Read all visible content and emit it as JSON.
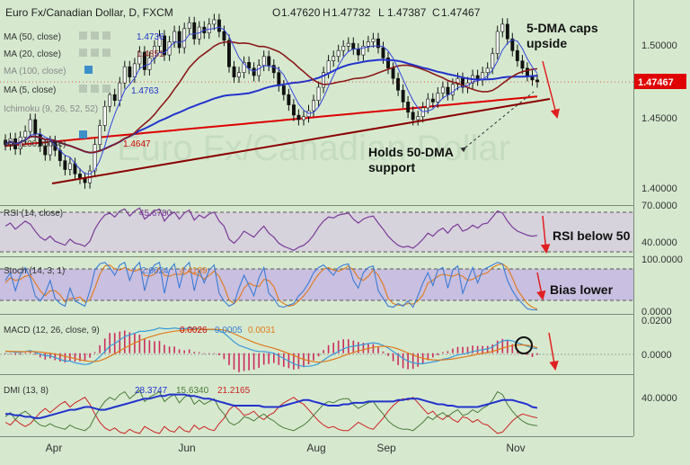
{
  "header": {
    "title": "Euro Fx/Canadian Dollar, D, FXCM",
    "ohlc": {
      "open_label": "O",
      "open": "1.47620",
      "high_label": "H",
      "high": "1.47732",
      "low_label": "L",
      "low": "1.47387",
      "close_label": "C",
      "close": "1.47467"
    }
  },
  "legend": [
    {
      "label": "MA (50, close)",
      "value": "1.4736",
      "color": "#2233cc"
    },
    {
      "label": "MA (20, close)",
      "value": "1.4851",
      "color": "#8b1a1a"
    },
    {
      "label": "MA (100, close)",
      "value": "",
      "color": "#999999"
    },
    {
      "label": "MA (5, close)",
      "value": "1.4763",
      "color": "#2233cc"
    },
    {
      "label": "Ichimoku (9, 26, 52, 52)",
      "value": "",
      "color": "#999999"
    },
    {
      "label": "MA (200, close)",
      "value": "1.4647",
      "color": "#cc0000"
    }
  ],
  "annotations": {
    "dma_caps_line1": "5-DMA caps",
    "dma_caps_line2": "upside",
    "holds_line1": "Holds 50-DMA",
    "holds_line2": "support",
    "rsi_note": "RSI below 50",
    "bias_note": "Bias lower"
  },
  "watermark": "Euro Fx/Canadian Dollar",
  "price_badge": "1.47467",
  "chart_data": [
    {
      "type": "candlestick",
      "panel": "price",
      "x_labels": [
        "Apr",
        "Jun",
        "Aug",
        "Sep",
        "Nov"
      ],
      "y_ticks": [
        "1.50000",
        "1.45000",
        "1.40000"
      ],
      "ylim": [
        1.392,
        1.528
      ],
      "last_close": 1.47467,
      "series": [
        {
          "name": "MA (5, close)",
          "value": 1.4763
        },
        {
          "name": "MA (20, close)",
          "value": 1.4851
        },
        {
          "name": "MA (50, close)",
          "value": 1.4736
        },
        {
          "name": "MA (200, close)",
          "value": 1.4647
        }
      ],
      "closes": [
        1.432,
        1.436,
        1.429,
        1.437,
        1.441,
        1.449,
        1.439,
        1.431,
        1.425,
        1.434,
        1.428,
        1.421,
        1.415,
        1.419,
        1.412,
        1.409,
        1.406,
        1.414,
        1.432,
        1.445,
        1.458,
        1.466,
        1.462,
        1.474,
        1.485,
        1.478,
        1.487,
        1.495,
        1.483,
        1.491,
        1.499,
        1.506,
        1.493,
        1.502,
        1.509,
        1.498,
        1.511,
        1.515,
        1.504,
        1.512,
        1.508,
        1.514,
        1.517,
        1.509,
        1.503,
        1.485,
        1.478,
        1.481,
        1.488,
        1.484,
        1.479,
        1.486,
        1.492,
        1.486,
        1.481,
        1.472,
        1.466,
        1.459,
        1.452,
        1.449,
        1.451,
        1.455,
        1.462,
        1.471,
        1.481,
        1.489,
        1.492,
        1.496,
        1.499,
        1.501,
        1.497,
        1.493,
        1.499,
        1.502,
        1.504,
        1.498,
        1.491,
        1.484,
        1.477,
        1.469,
        1.461,
        1.454,
        1.449,
        1.451,
        1.457,
        1.463,
        1.461,
        1.467,
        1.471,
        1.466,
        1.473,
        1.477,
        1.471,
        1.474,
        1.479,
        1.476,
        1.481,
        1.484,
        1.494,
        1.509,
        1.514,
        1.504,
        1.496,
        1.489,
        1.484,
        1.479,
        1.476,
        1.4747
      ]
    },
    {
      "type": "line",
      "panel": "rsi",
      "name": "RSI (14, close)",
      "value_label": "45.6780",
      "y_ticks": [
        "70.0000",
        "40.0000"
      ],
      "ylim": [
        25,
        75
      ],
      "band": [
        30,
        70
      ],
      "values": [
        55,
        58,
        52,
        56,
        60,
        57,
        50,
        44,
        41,
        45,
        40,
        38,
        36,
        42,
        38,
        37,
        35,
        40,
        52,
        60,
        66,
        68,
        64,
        70,
        72,
        65,
        70,
        73,
        62,
        66,
        70,
        72,
        60,
        66,
        69,
        62,
        68,
        71,
        61,
        66,
        63,
        67,
        69,
        60,
        55,
        42,
        38,
        43,
        50,
        47,
        44,
        50,
        55,
        48,
        44,
        38,
        35,
        33,
        31,
        34,
        36,
        40,
        46,
        54,
        60,
        64,
        63,
        66,
        67,
        68,
        62,
        58,
        62,
        64,
        65,
        58,
        52,
        45,
        40,
        36,
        34,
        35,
        33,
        37,
        42,
        48,
        45,
        50,
        53,
        48,
        54,
        57,
        50,
        52,
        56,
        53,
        57,
        58,
        64,
        70,
        68,
        60,
        54,
        50,
        48,
        46,
        45,
        45.678
      ]
    },
    {
      "type": "line",
      "panel": "stochastic",
      "name": "Stoch (14, 3, 1)",
      "values_label": [
        "2.6624",
        "4.4189"
      ],
      "y_ticks": [
        "100.0000",
        "0.0000"
      ],
      "ylim": [
        -5,
        105
      ],
      "band": [
        20,
        80
      ],
      "k": [
        60,
        75,
        40,
        70,
        85,
        65,
        30,
        20,
        35,
        60,
        25,
        15,
        10,
        45,
        20,
        15,
        10,
        40,
        80,
        92,
        95,
        85,
        70,
        90,
        95,
        60,
        85,
        95,
        40,
        75,
        90,
        95,
        35,
        80,
        92,
        45,
        85,
        95,
        40,
        80,
        55,
        80,
        90,
        35,
        20,
        10,
        15,
        45,
        70,
        50,
        30,
        65,
        85,
        35,
        25,
        10,
        8,
        12,
        15,
        30,
        40,
        55,
        75,
        85,
        90,
        80,
        70,
        85,
        90,
        92,
        60,
        45,
        75,
        85,
        88,
        40,
        25,
        10,
        8,
        15,
        10,
        20,
        8,
        30,
        55,
        75,
        50,
        80,
        85,
        45,
        80,
        88,
        35,
        60,
        85,
        55,
        80,
        85,
        90,
        95,
        92,
        60,
        40,
        25,
        15,
        5,
        3,
        2.6624
      ],
      "d": [
        55,
        65,
        60,
        62,
        68,
        70,
        55,
        40,
        30,
        40,
        40,
        32,
        18,
        25,
        25,
        28,
        18,
        22,
        45,
        72,
        88,
        90,
        82,
        80,
        85,
        80,
        78,
        82,
        70,
        68,
        72,
        85,
        70,
        68,
        72,
        72,
        72,
        78,
        72,
        70,
        62,
        70,
        78,
        68,
        48,
        22,
        15,
        25,
        45,
        55,
        50,
        48,
        62,
        60,
        48,
        22,
        15,
        10,
        12,
        20,
        30,
        42,
        58,
        72,
        82,
        85,
        80,
        78,
        82,
        88,
        80,
        65,
        60,
        68,
        80,
        70,
        52,
        25,
        15,
        12,
        12,
        15,
        14,
        20,
        32,
        55,
        60,
        68,
        72,
        70,
        68,
        72,
        68,
        60,
        62,
        68,
        72,
        75,
        85,
        90,
        92,
        85,
        65,
        42,
        28,
        15,
        8,
        4.4189
      ]
    },
    {
      "type": "bar+line",
      "panel": "macd",
      "name": "MACD (12, 26, close, 9)",
      "values_label": [
        "0.0026",
        "0.0005",
        "0.0031"
      ],
      "y_ticks": [
        "0.0200",
        "0.0000"
      ],
      "ylim": [
        -0.012,
        0.022
      ],
      "macd": [
        0.001,
        0.001,
        0.0005,
        0.0005,
        0.001,
        0.0015,
        0.0005,
        -0.0005,
        -0.0015,
        -0.0015,
        -0.0025,
        -0.0035,
        -0.0045,
        -0.0045,
        -0.0055,
        -0.006,
        -0.0065,
        -0.006,
        -0.0045,
        -0.002,
        0.001,
        0.004,
        0.0055,
        0.0075,
        0.0095,
        0.0105,
        0.0115,
        0.0125,
        0.0125,
        0.013,
        0.0135,
        0.0145,
        0.014,
        0.014,
        0.0145,
        0.014,
        0.014,
        0.0145,
        0.014,
        0.014,
        0.0135,
        0.0135,
        0.0135,
        0.013,
        0.0115,
        0.009,
        0.0065,
        0.0045,
        0.0035,
        0.0025,
        0.0015,
        0.001,
        0.001,
        0.0005,
        0.0,
        -0.0015,
        -0.003,
        -0.0045,
        -0.006,
        -0.007,
        -0.0075,
        -0.0075,
        -0.007,
        -0.006,
        -0.004,
        -0.002,
        -0.0005,
        0.001,
        0.0025,
        0.0035,
        0.004,
        0.0045,
        0.005,
        0.0055,
        0.006,
        0.0055,
        0.0045,
        0.003,
        0.001,
        -0.001,
        -0.003,
        -0.0045,
        -0.0055,
        -0.006,
        -0.006,
        -0.0055,
        -0.005,
        -0.0045,
        -0.0035,
        -0.003,
        -0.002,
        -0.001,
        -0.0005,
        0.0,
        0.001,
        0.0015,
        0.002,
        0.0025,
        0.0035,
        0.0055,
        0.007,
        0.0075,
        0.007,
        0.006,
        0.005,
        0.004,
        0.003,
        0.0026
      ],
      "signal": [
        0.0012,
        0.0011,
        0.001,
        0.0009,
        0.0009,
        0.001,
        0.0009,
        0.0007,
        0.0003,
        0.0,
        -0.0005,
        -0.0011,
        -0.0018,
        -0.0024,
        -0.0031,
        -0.0037,
        -0.0043,
        -0.0047,
        -0.0048,
        -0.0043,
        -0.0032,
        -0.0018,
        -0.0003,
        0.0013,
        0.003,
        0.0045,
        0.0059,
        0.0072,
        0.0083,
        0.0093,
        0.0101,
        0.011,
        0.0116,
        0.0121,
        0.0126,
        0.0129,
        0.0132,
        0.0134,
        0.0136,
        0.0137,
        0.0137,
        0.0137,
        0.0137,
        0.0136,
        0.0132,
        0.0124,
        0.0112,
        0.0099,
        0.0086,
        0.0074,
        0.0062,
        0.0052,
        0.0043,
        0.0036,
        0.0028,
        0.0019,
        0.0009,
        -0.0002,
        -0.0013,
        -0.0025,
        -0.0035,
        -0.0043,
        -0.0049,
        -0.0051,
        -0.0049,
        -0.0043,
        -0.0035,
        -0.0026,
        -0.0015,
        -0.0005,
        0.0004,
        0.0013,
        0.002,
        0.0027,
        0.0034,
        0.0038,
        0.004,
        0.0038,
        0.0033,
        0.0024,
        0.0013,
        0.0001,
        -0.001,
        -0.0021,
        -0.0029,
        -0.0035,
        -0.0038,
        -0.0039,
        -0.0038,
        -0.0036,
        -0.0033,
        -0.0028,
        -0.0023,
        -0.0018,
        -0.0012,
        -0.0006,
        -0.0001,
        0.0004,
        0.001,
        0.0019,
        0.0029,
        0.0038,
        0.0044,
        0.0047,
        0.0048,
        0.0045,
        0.0041,
        0.0031
      ]
    },
    {
      "type": "line",
      "panel": "dmi",
      "name": "DMI (13, 8)",
      "values_label": [
        "28.3747",
        "15.6340",
        "21.2165"
      ],
      "y_ticks": [
        "40.0000"
      ],
      "ylim": [
        8,
        52
      ],
      "adx": [
        24,
        24,
        23,
        23,
        22,
        22,
        21,
        21,
        22,
        23,
        24,
        25,
        26,
        27,
        27,
        28,
        29,
        29,
        28,
        27,
        27,
        28,
        29,
        30,
        31,
        32,
        33,
        34,
        35,
        35,
        36,
        37,
        37,
        38,
        38,
        38,
        38,
        37,
        37,
        36,
        35,
        35,
        34,
        33,
        32,
        31,
        30,
        30,
        30,
        30,
        30,
        30,
        29,
        29,
        29,
        29,
        30,
        31,
        32,
        33,
        34,
        34,
        33,
        32,
        31,
        30,
        30,
        30,
        31,
        31,
        32,
        32,
        32,
        33,
        33,
        33,
        33,
        33,
        33,
        34,
        34,
        35,
        35,
        35,
        34,
        33,
        32,
        31,
        31,
        30,
        30,
        29,
        29,
        29,
        29,
        29,
        30,
        31,
        32,
        33,
        34,
        34,
        34,
        33,
        32,
        31,
        29,
        28.3747
      ],
      "di_plus": [
        22,
        25,
        20,
        24,
        26,
        23,
        19,
        16,
        15,
        17,
        15,
        14,
        13,
        16,
        14,
        13,
        12,
        15,
        22,
        28,
        33,
        36,
        34,
        38,
        40,
        35,
        38,
        41,
        33,
        36,
        38,
        40,
        33,
        36,
        38,
        32,
        36,
        38,
        31,
        34,
        31,
        33,
        35,
        28,
        24,
        18,
        16,
        18,
        22,
        21,
        19,
        22,
        24,
        21,
        19,
        16,
        14,
        13,
        12,
        14,
        16,
        19,
        23,
        27,
        31,
        33,
        32,
        34,
        35,
        35,
        31,
        28,
        30,
        32,
        33,
        28,
        24,
        19,
        16,
        14,
        13,
        13,
        12,
        15,
        18,
        22,
        20,
        23,
        25,
        22,
        25,
        27,
        23,
        24,
        27,
        25,
        28,
        30,
        34,
        40,
        38,
        31,
        26,
        22,
        19,
        17,
        16,
        15.634
      ],
      "di_minus": [
        18,
        16,
        20,
        17,
        15,
        17,
        21,
        25,
        28,
        25,
        28,
        31,
        33,
        29,
        32,
        34,
        36,
        31,
        24,
        18,
        14,
        12,
        14,
        11,
        10,
        13,
        11,
        10,
        15,
        13,
        11,
        10,
        15,
        12,
        11,
        15,
        12,
        11,
        16,
        13,
        15,
        13,
        12,
        17,
        21,
        27,
        30,
        27,
        23,
        24,
        26,
        22,
        20,
        23,
        25,
        29,
        32,
        34,
        36,
        33,
        31,
        27,
        23,
        19,
        16,
        14,
        15,
        13,
        12,
        12,
        15,
        18,
        16,
        14,
        13,
        17,
        21,
        26,
        30,
        33,
        35,
        34,
        36,
        32,
        28,
        24,
        26,
        22,
        20,
        23,
        20,
        18,
        22,
        21,
        18,
        20,
        17,
        16,
        13,
        10,
        11,
        15,
        19,
        22,
        24,
        23,
        22,
        21.2165
      ]
    }
  ]
}
